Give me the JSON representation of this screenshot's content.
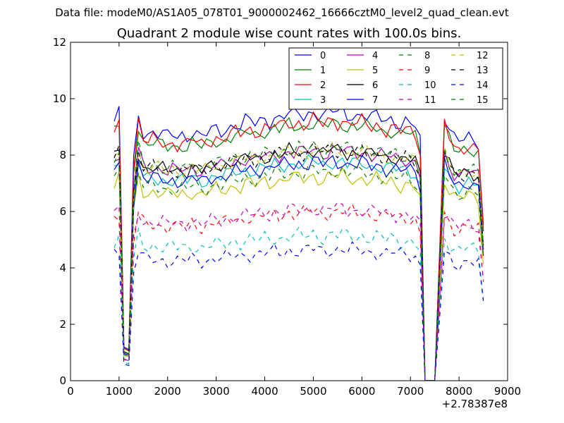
{
  "suptitle": "Data file: modeM0/AS1A05_078T01_9000002462_16666cztM0_level2_quad_clean.evt",
  "chart_data": {
    "type": "line",
    "title": "Quadrant 2 module wise count rates with 100.0s bins.",
    "xlabel": "",
    "ylabel": "",
    "x_offset_label": "+2.78387e8",
    "xlim": [
      0,
      9000
    ],
    "ylim": [
      0,
      12
    ],
    "xticks": [
      0,
      1000,
      2000,
      3000,
      4000,
      5000,
      6000,
      7000,
      8000,
      9000
    ],
    "yticks": [
      0,
      2,
      4,
      6,
      8,
      10,
      12
    ],
    "grid": false,
    "legend_position": "top-right",
    "legend_columns": 4,
    "x": [
      900,
      1000,
      1100,
      1200,
      1300,
      1400,
      1500,
      1600,
      1700,
      1800,
      1900,
      2000,
      2100,
      2200,
      2300,
      2400,
      2500,
      2600,
      2700,
      2800,
      2900,
      3000,
      3100,
      3200,
      3300,
      3400,
      3500,
      3600,
      3700,
      3800,
      3900,
      4000,
      4100,
      4200,
      4300,
      4400,
      4500,
      4600,
      4700,
      4800,
      4900,
      5000,
      5100,
      5200,
      5300,
      5400,
      5500,
      5600,
      5700,
      5800,
      5900,
      6000,
      6100,
      6200,
      6300,
      6400,
      6500,
      6600,
      6700,
      6800,
      6900,
      7000,
      7100,
      7200,
      7300,
      7400,
      7500,
      7600,
      7700,
      7800,
      7900,
      8000,
      8100,
      8200,
      8300,
      8400,
      8500
    ],
    "base_profile": [
      1.0,
      1.03,
      0.13,
      0.12,
      0.85,
      1.03,
      0.96,
      0.95,
      0.96,
      0.95,
      0.95,
      0.94,
      0.95,
      0.94,
      0.95,
      0.94,
      0.96,
      0.95,
      0.94,
      0.95,
      0.96,
      0.97,
      0.96,
      0.97,
      0.98,
      0.99,
      0.98,
      1.0,
      1.0,
      0.99,
      1.0,
      1.01,
      1.0,
      1.02,
      1.01,
      1.02,
      1.03,
      1.02,
      1.03,
      1.02,
      1.03,
      1.04,
      1.03,
      1.02,
      1.03,
      1.04,
      1.03,
      1.04,
      1.02,
      1.03,
      1.02,
      1.03,
      1.02,
      1.01,
      1.02,
      1.01,
      1.0,
      1.01,
      1.0,
      0.99,
      1.0,
      0.99,
      0.98,
      0.92,
      0.0,
      0.0,
      0.0,
      0.5,
      1.02,
      0.97,
      0.93,
      0.92,
      0.93,
      0.94,
      0.93,
      0.92,
      0.6
    ],
    "series": [
      {
        "name": "0",
        "color": "#0000ff",
        "dash": "solid",
        "level": 9.2,
        "noise": 0.3
      },
      {
        "name": "1",
        "color": "#008000",
        "dash": "solid",
        "level": 8.8,
        "noise": 0.3
      },
      {
        "name": "2",
        "color": "#ff0000",
        "dash": "solid",
        "level": 8.9,
        "noise": 0.3
      },
      {
        "name": "3",
        "color": "#00bfbf",
        "dash": "solid",
        "level": 7.5,
        "noise": 0.3
      },
      {
        "name": "4",
        "color": "#bf00bf",
        "dash": "solid",
        "level": 7.9,
        "noise": 0.3
      },
      {
        "name": "5",
        "color": "#bfbf00",
        "dash": "solid",
        "level": 7.0,
        "noise": 0.3
      },
      {
        "name": "6",
        "color": "#000000",
        "dash": "solid",
        "level": 7.9,
        "noise": 0.3
      },
      {
        "name": "7",
        "color": "#0000ff",
        "dash": "solid",
        "level": 7.5,
        "noise": 0.3
      },
      {
        "name": "8",
        "color": "#008000",
        "dash": "dashed",
        "level": 7.2,
        "noise": 0.3
      },
      {
        "name": "9",
        "color": "#ff0000",
        "dash": "dashed",
        "level": 5.8,
        "noise": 0.3
      },
      {
        "name": "10",
        "color": "#00bfbf",
        "dash": "dashed",
        "level": 5.0,
        "noise": 0.3
      },
      {
        "name": "11",
        "color": "#bf00bf",
        "dash": "dashed",
        "level": 5.9,
        "noise": 0.3
      },
      {
        "name": "12",
        "color": "#bfbf00",
        "dash": "dashed",
        "level": 7.9,
        "noise": 0.3
      },
      {
        "name": "13",
        "color": "#000000",
        "dash": "dashed",
        "level": 7.9,
        "noise": 0.3
      },
      {
        "name": "14",
        "color": "#0000ff",
        "dash": "dashed",
        "level": 4.5,
        "noise": 0.3
      },
      {
        "name": "15",
        "color": "#008000",
        "dash": "dashed",
        "level": 8.0,
        "noise": 0.3
      }
    ]
  }
}
